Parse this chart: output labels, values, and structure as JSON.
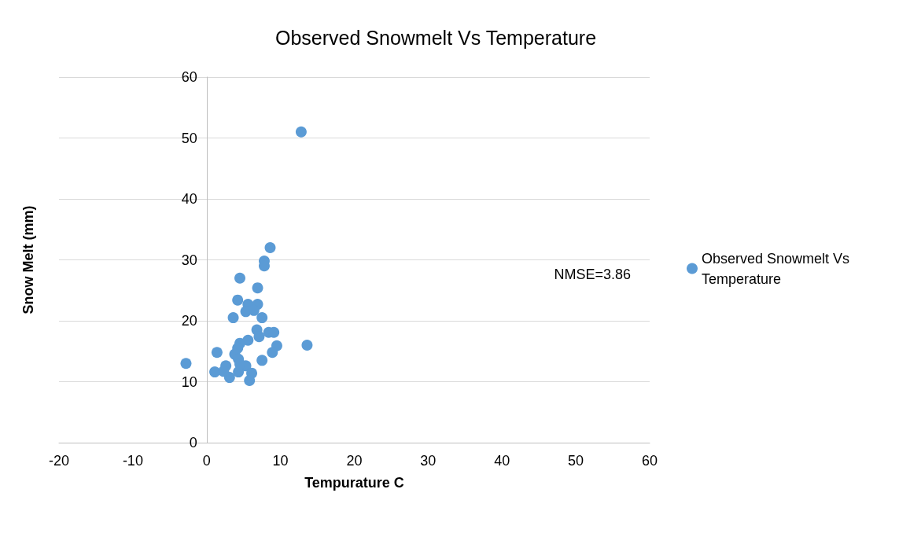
{
  "chart_data": {
    "type": "scatter",
    "title": "Observed Snowmelt Vs Temperature",
    "xlabel": "Tempurature C",
    "ylabel": "Snow Melt (mm)",
    "annotations": [
      "NMSE=3.86"
    ],
    "xlim": [
      -20,
      60
    ],
    "xticks": [
      -20,
      -10,
      0,
      10,
      20,
      30,
      40,
      50,
      60
    ],
    "ylim": [
      0,
      60
    ],
    "yticks": [
      0,
      10,
      20,
      30,
      40,
      50,
      60
    ],
    "grid": "y",
    "legend": "right",
    "marker": "circle",
    "series": [
      {
        "name": "Observed Snowmelt Vs Temperature",
        "color": "#5b9bd5",
        "x": [
          8.6,
          7.8,
          7.8,
          4.5,
          6.9,
          4.2,
          5.6,
          6.9,
          5.3,
          6.4,
          7.5,
          3.6,
          6.8,
          7.1,
          8.4,
          9.1,
          5.6,
          4.5,
          4.2,
          9.5,
          13.6,
          1.4,
          8.9,
          3.8,
          4.3,
          7.5,
          -2.8,
          2.6,
          5.3,
          1.1,
          3.1,
          4.3,
          6.1,
          5.8,
          4.5,
          2.3,
          12.8
        ],
        "values": [
          32.0,
          29.8,
          29.0,
          27.0,
          25.4,
          23.4,
          22.7,
          22.7,
          21.5,
          21.7,
          20.5,
          20.5,
          18.5,
          17.4,
          18.1,
          18.1,
          16.8,
          16.3,
          15.5,
          15.9,
          16.0,
          14.8,
          14.8,
          14.5,
          13.7,
          13.5,
          13.0,
          12.6,
          12.6,
          11.6,
          10.7,
          11.6,
          11.4,
          10.2,
          12.9,
          11.7,
          51.0
        ]
      }
    ]
  }
}
